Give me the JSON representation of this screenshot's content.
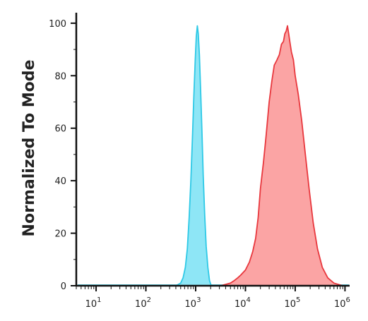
{
  "chart_data": {
    "type": "area",
    "title": "",
    "xlabel": "",
    "ylabel": "Normalized To Mode",
    "x_scale": "log",
    "xlim": [
      4,
      1200000
    ],
    "ylim": [
      0,
      104
    ],
    "grid": false,
    "legend": "none",
    "y_ticks": [
      0,
      20,
      40,
      60,
      80,
      100
    ],
    "x_ticks": [
      {
        "value": 10,
        "base": "10",
        "exp": "1"
      },
      {
        "value": 100,
        "base": "10",
        "exp": "2"
      },
      {
        "value": 1000,
        "base": "10",
        "exp": "3"
      },
      {
        "value": 10000,
        "base": "10",
        "exp": "4"
      },
      {
        "value": 100000,
        "base": "10",
        "exp": "5"
      },
      {
        "value": 1000000,
        "base": "10",
        "exp": "6"
      }
    ],
    "series": [
      {
        "color": "#2ec9e6",
        "fill": "#8ee6f6",
        "points": [
          [
            400,
            0
          ],
          [
            500,
            1
          ],
          [
            560,
            3
          ],
          [
            620,
            7
          ],
          [
            680,
            14
          ],
          [
            740,
            26
          ],
          [
            800,
            40
          ],
          [
            860,
            56
          ],
          [
            920,
            72
          ],
          [
            980,
            86
          ],
          [
            1030,
            95
          ],
          [
            1080,
            99
          ],
          [
            1130,
            96
          ],
          [
            1190,
            88
          ],
          [
            1260,
            74
          ],
          [
            1340,
            58
          ],
          [
            1420,
            42
          ],
          [
            1520,
            27
          ],
          [
            1630,
            15
          ],
          [
            1760,
            7
          ],
          [
            1900,
            2
          ],
          [
            2050,
            0
          ]
        ]
      },
      {
        "color": "#e8373d",
        "fill": "#fba4a4",
        "points": [
          [
            3200,
            0
          ],
          [
            4000,
            0.5
          ],
          [
            5000,
            1
          ],
          [
            6000,
            2
          ],
          [
            7000,
            3
          ],
          [
            8000,
            4
          ],
          [
            10000,
            6
          ],
          [
            12000,
            9
          ],
          [
            14000,
            13
          ],
          [
            16000,
            18
          ],
          [
            18000,
            26
          ],
          [
            20000,
            37
          ],
          [
            23000,
            47
          ],
          [
            26000,
            57
          ],
          [
            30000,
            70
          ],
          [
            34000,
            78
          ],
          [
            38000,
            84
          ],
          [
            43000,
            86
          ],
          [
            48000,
            88
          ],
          [
            53000,
            92
          ],
          [
            58000,
            93
          ],
          [
            62000,
            96
          ],
          [
            66000,
            97
          ],
          [
            70000,
            99
          ],
          [
            74000,
            96
          ],
          [
            78000,
            93
          ],
          [
            84000,
            89
          ],
          [
            92000,
            86
          ],
          [
            100000,
            80
          ],
          [
            115000,
            73
          ],
          [
            135000,
            63
          ],
          [
            160000,
            50
          ],
          [
            190000,
            37
          ],
          [
            230000,
            24
          ],
          [
            280000,
            14
          ],
          [
            350000,
            7
          ],
          [
            450000,
            3
          ],
          [
            600000,
            1
          ],
          [
            900000,
            0
          ]
        ]
      }
    ]
  }
}
